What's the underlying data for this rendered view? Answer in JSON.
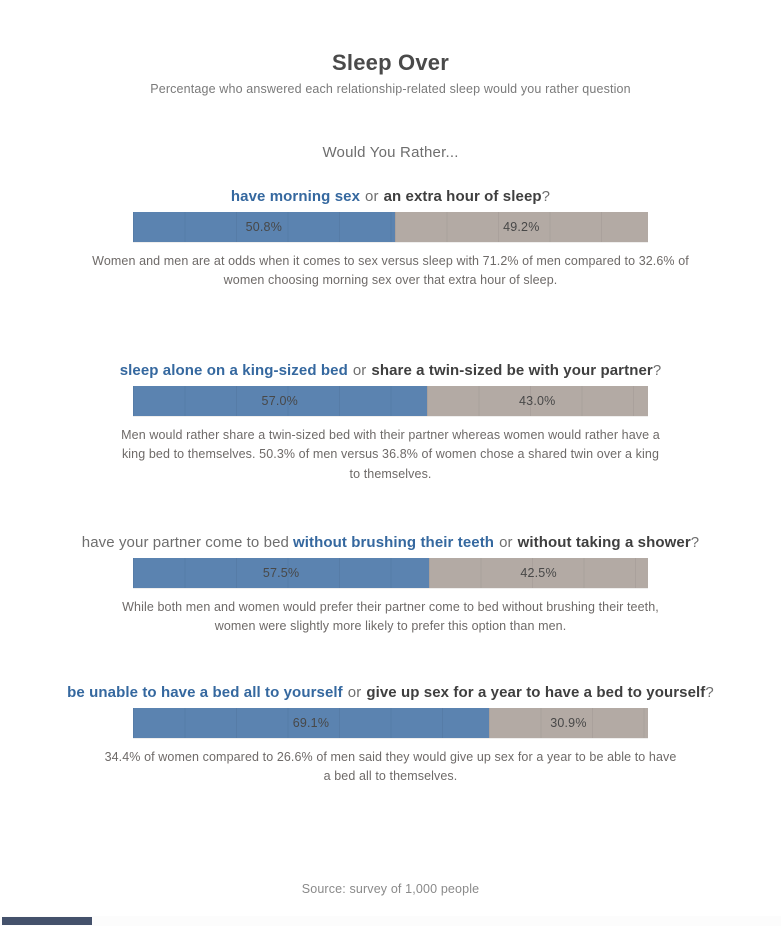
{
  "page": {
    "title": "Sleep Over",
    "subtitle": "Percentage who answered each relationship-related sleep would you rather question",
    "prompt": "Would You Rather...",
    "source": "Source: survey of 1,000 people"
  },
  "labels": {
    "or": "or",
    "question_mark": "?"
  },
  "colors": {
    "option_a_bar": "#5b83b0",
    "option_b_bar": "#b3aaa4",
    "option_a_text": "#35689f",
    "option_b_text": "#3f3f3f"
  },
  "chart_data": {
    "type": "bar",
    "subtype": "100pct-stacked-horizontal",
    "title": "Sleep Over",
    "subtitle": "Percentage who answered each relationship-related sleep would you rather question",
    "xlabel": "",
    "ylabel": "",
    "xlim": [
      0,
      100
    ],
    "grid": "faint vertical gridlines every 10%",
    "legend_position": "none",
    "questions": [
      {
        "prefix": "",
        "option_a": "have morning sex",
        "option_b": "an extra hour of sleep",
        "option_a_pct": 50.8,
        "option_b_pct": 49.2,
        "option_a_label": "50.8%",
        "option_b_label": "49.2%",
        "caption": "Women and men are at odds when it comes to sex versus sleep with 71.2% of men compared to 32.6% of women choosing morning sex over that extra hour of sleep."
      },
      {
        "prefix": "",
        "option_a": "sleep alone on a king-sized bed",
        "option_b": "share a twin-sized be with your partner",
        "option_a_pct": 57.0,
        "option_b_pct": 43.0,
        "option_a_label": "57.0%",
        "option_b_label": "43.0%",
        "caption": "Men would rather share a twin-sized bed with their partner whereas women would rather have a king bed to themselves. 50.3% of men versus 36.8% of women chose a shared twin over a king to themselves."
      },
      {
        "prefix": "have your partner come to bed",
        "option_a": "without brushing their teeth",
        "option_b": "without taking a shower",
        "option_a_pct": 57.5,
        "option_b_pct": 42.5,
        "option_a_label": "57.5%",
        "option_b_label": "42.5%",
        "caption": "While both men and women would prefer their partner come to bed without brushing their teeth, women were slightly more likely to prefer this option than men."
      },
      {
        "prefix": "",
        "option_a": "be unable to have a bed all to yourself",
        "option_b": "give up sex for a year to have a bed to yourself",
        "option_a_pct": 69.1,
        "option_b_pct": 30.9,
        "option_a_label": "69.1%",
        "option_b_label": "30.9%",
        "caption": "34.4% of women compared to 26.6% of men said they would give up sex for a year to be able to have a bed all to themselves."
      }
    ]
  }
}
